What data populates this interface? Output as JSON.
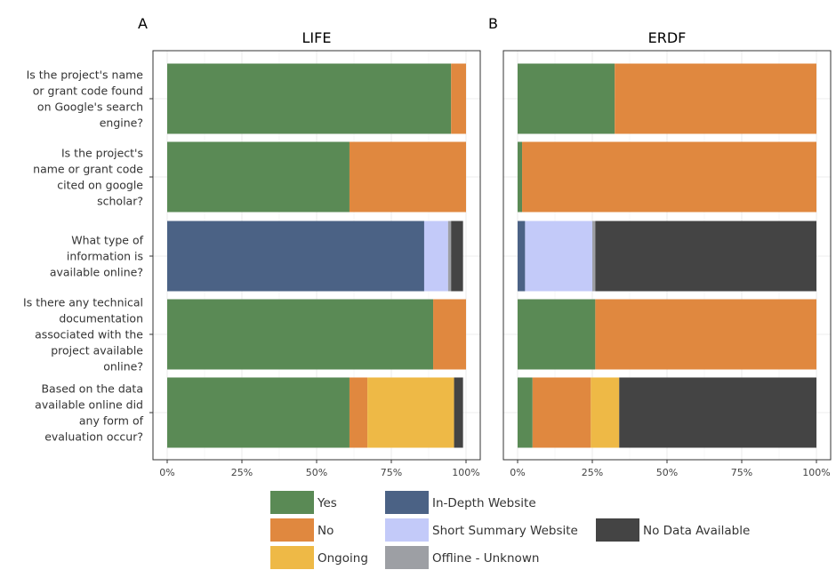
{
  "chart_data": {
    "type": "bar",
    "orientation": "horizontal",
    "stacked": true,
    "categories": [
      "Is the project's name or grant code found on Google's search engine?",
      "Is the project's name or grant code cited on google scholar?",
      "What type of information is available online?",
      "Is there any technical documentation associated with the project available online?",
      "Based on the data available online did any form of evaluation occur?"
    ],
    "category_lines": [
      [
        "Is the project's name",
        "or grant code found",
        "on Google's search",
        "engine?"
      ],
      [
        "Is the project's",
        "name or grant code",
        "cited on google",
        "scholar?"
      ],
      [
        "What type of",
        "information is",
        "available online?"
      ],
      [
        "Is there any technical",
        "documentation",
        "associated with the",
        "project available",
        "online?"
      ],
      [
        "Based on the data",
        "available online did",
        "any form of",
        "evaluation occur?"
      ]
    ],
    "xlim": [
      0,
      100
    ],
    "x_ticks": [
      "0%",
      "25%",
      "50%",
      "75%",
      "100%"
    ],
    "grid": true,
    "legend_position": "bottom",
    "panels": [
      {
        "label": "A",
        "title": "LIFE",
        "rows": [
          [
            {
              "series": "Yes",
              "value": 95
            },
            {
              "series": "No",
              "value": 5
            }
          ],
          [
            {
              "series": "Yes",
              "value": 61
            },
            {
              "series": "No",
              "value": 39
            }
          ],
          [
            {
              "series": "In-Depth Website",
              "value": 86
            },
            {
              "series": "Short Summary Website",
              "value": 8
            },
            {
              "series": "Offline - Unknown",
              "value": 1
            },
            {
              "series": "No Data Available",
              "value": 4
            }
          ],
          [
            {
              "series": "Yes",
              "value": 89
            },
            {
              "series": "No",
              "value": 11
            }
          ],
          [
            {
              "series": "Yes",
              "value": 61
            },
            {
              "series": "No",
              "value": 6
            },
            {
              "series": "Ongoing",
              "value": 29
            },
            {
              "series": "No Data Available",
              "value": 3
            }
          ]
        ]
      },
      {
        "label": "B",
        "title": "ERDF",
        "rows": [
          [
            {
              "series": "Yes",
              "value": 32.5
            },
            {
              "series": "No",
              "value": 67.5
            }
          ],
          [
            {
              "series": "Yes",
              "value": 1.5
            },
            {
              "series": "No",
              "value": 98.5
            }
          ],
          [
            {
              "series": "In-Depth Website",
              "value": 2.5
            },
            {
              "series": "Short Summary Website",
              "value": 22.5
            },
            {
              "series": "Offline - Unknown",
              "value": 1
            },
            {
              "series": "No Data Available",
              "value": 74
            }
          ],
          [
            {
              "series": "Yes",
              "value": 26
            },
            {
              "series": "No",
              "value": 74
            }
          ],
          [
            {
              "series": "Yes",
              "value": 5
            },
            {
              "series": "No",
              "value": 19.5
            },
            {
              "series": "Ongoing",
              "value": 9.5
            },
            {
              "series": "No Data Available",
              "value": 66
            }
          ]
        ]
      }
    ],
    "series": [
      {
        "name": "Yes",
        "color": "#5a8a55"
      },
      {
        "name": "No",
        "color": "#e0883f"
      },
      {
        "name": "Ongoing",
        "color": "#eeb946"
      },
      {
        "name": "In-Depth Website",
        "color": "#4b6285"
      },
      {
        "name": "Short Summary Website",
        "color": "#c3caf9"
      },
      {
        "name": "Offline - Unknown",
        "color": "#9d9fa4"
      },
      {
        "name": "No Data Available",
        "color": "#444444"
      }
    ]
  }
}
